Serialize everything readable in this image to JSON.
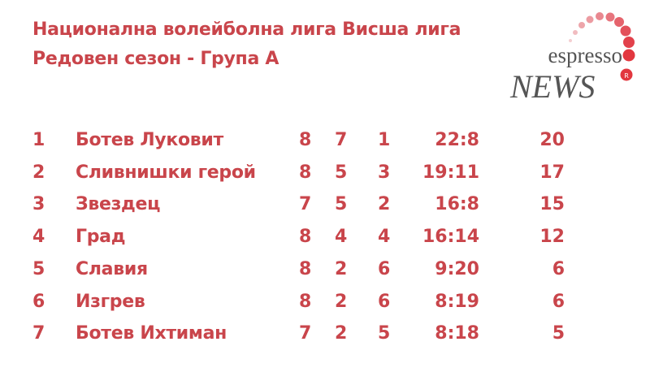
{
  "header": {
    "title_line1": "Национална волейболна лига Висша лига",
    "title_line2": "Редовен сезон - Група А"
  },
  "logo": {
    "text_top": "espresso",
    "text_bottom": "NEWS",
    "mark": "R",
    "accent": "#e2373f"
  },
  "text_color": "#c9454b",
  "standings": [
    {
      "pos": "1",
      "team": "Ботев Луковит",
      "played": "8",
      "wins": "7",
      "losses": "1",
      "sets": "22:8",
      "points": "20"
    },
    {
      "pos": "2",
      "team": "Сливнишки герой",
      "played": "8",
      "wins": "5",
      "losses": "3",
      "sets": "19:11",
      "points": "17"
    },
    {
      "pos": "3",
      "team": "Звездец",
      "played": "7",
      "wins": "5",
      "losses": "2",
      "sets": "16:8",
      "points": "15"
    },
    {
      "pos": "4",
      "team": "Град",
      "played": "8",
      "wins": "4",
      "losses": "4",
      "sets": "16:14",
      "points": "12"
    },
    {
      "pos": "5",
      "team": "Славия",
      "played": "8",
      "wins": "2",
      "losses": "6",
      "sets": "9:20",
      "points": "6"
    },
    {
      "pos": "6",
      "team": "Изгрев",
      "played": "8",
      "wins": "2",
      "losses": "6",
      "sets": "8:19",
      "points": "6"
    },
    {
      "pos": "7",
      "team": "Ботев Ихтиман",
      "played": "7",
      "wins": "2",
      "losses": "5",
      "sets": "8:18",
      "points": "5"
    }
  ]
}
